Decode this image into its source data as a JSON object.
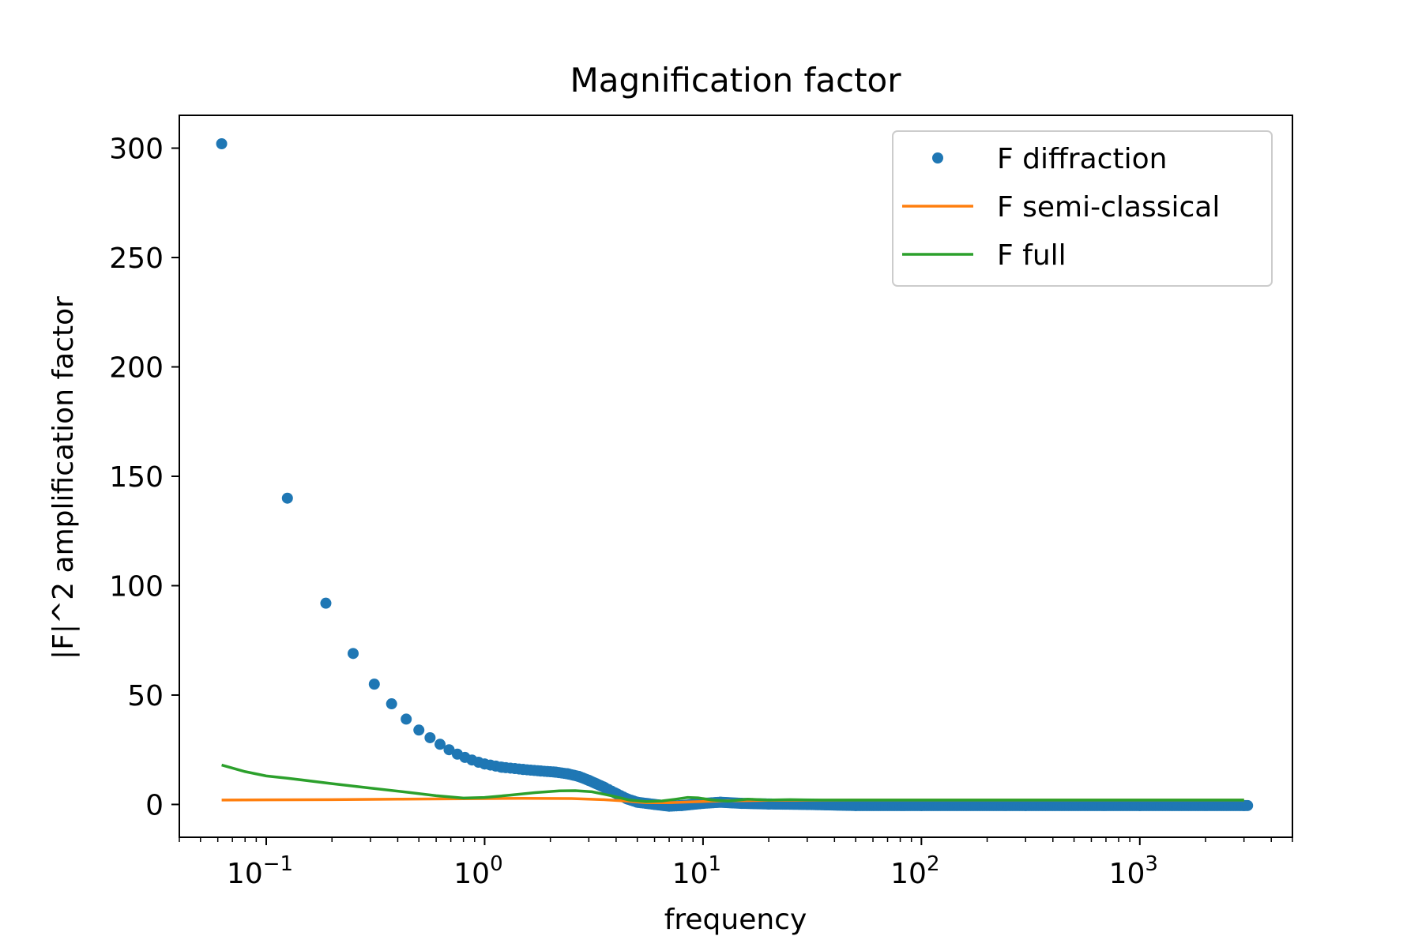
{
  "chart_data": {
    "type": "scatter",
    "title": "Magnification factor",
    "xlabel": "frequency",
    "ylabel": "|F|^2 amplification factor",
    "xscale": "log",
    "xlim": [
      0.04,
      5000
    ],
    "ylim": [
      -15,
      315
    ],
    "grid": false,
    "legend_position": "top-right",
    "y_ticks": [
      0,
      50,
      100,
      150,
      200,
      250,
      300
    ],
    "x_ticks": [
      0.1,
      1,
      10,
      100,
      1000
    ],
    "x_tick_labels": [
      {
        "base": "10",
        "exp": "−1"
      },
      {
        "base": "10",
        "exp": "0"
      },
      {
        "base": "10",
        "exp": "1"
      },
      {
        "base": "10",
        "exp": "2"
      },
      {
        "base": "10",
        "exp": "3"
      }
    ],
    "series": [
      {
        "name": "F diffraction",
        "style": "dots",
        "color": "#1f77b4",
        "points": [
          [
            0.0625,
            302
          ],
          [
            0.125,
            140
          ],
          [
            0.1875,
            92
          ],
          [
            0.25,
            69
          ],
          [
            0.3125,
            55
          ],
          [
            0.375,
            46
          ],
          [
            0.4375,
            39
          ],
          [
            0.5,
            34
          ],
          [
            0.5625,
            30.5
          ],
          [
            0.625,
            27.5
          ],
          [
            0.6875,
            25
          ],
          [
            0.75,
            23
          ],
          [
            0.8125,
            21.5
          ],
          [
            0.875,
            20.3
          ],
          [
            0.9375,
            19.3
          ],
          [
            1.0,
            18.5
          ],
          [
            1.2,
            17
          ],
          [
            1.5,
            16
          ],
          [
            1.8,
            15.3
          ],
          [
            2.1,
            14.8
          ],
          [
            2.4,
            14
          ],
          [
            2.7,
            12.8
          ],
          [
            3.0,
            11
          ],
          [
            3.5,
            8
          ],
          [
            4.0,
            5
          ],
          [
            4.5,
            2.5
          ],
          [
            5.0,
            1
          ],
          [
            6.0,
            0
          ],
          [
            7.0,
            -0.8
          ],
          [
            8.0,
            -0.5
          ],
          [
            10,
            0.5
          ],
          [
            12,
            1
          ],
          [
            15,
            0.5
          ],
          [
            20,
            0.2
          ],
          [
            30,
            0
          ],
          [
            50,
            -0.5
          ],
          [
            100,
            -0.5
          ],
          [
            300,
            -0.5
          ],
          [
            1000,
            -0.5
          ],
          [
            3000,
            -0.5
          ]
        ]
      },
      {
        "name": "F semi-classical",
        "style": "line",
        "color": "#ff7f0e",
        "points": [
          [
            0.0625,
            2
          ],
          [
            0.1,
            2.1
          ],
          [
            0.2,
            2.2
          ],
          [
            0.4,
            2.4
          ],
          [
            0.8,
            2.6
          ],
          [
            1.5,
            2.8
          ],
          [
            2.5,
            2.7
          ],
          [
            3.5,
            2.2
          ],
          [
            4.5,
            1.5
          ],
          [
            5.5,
            0.8
          ],
          [
            7,
            0.8
          ],
          [
            9,
            1.2
          ],
          [
            12,
            1.6
          ],
          [
            20,
            1.9
          ],
          [
            50,
            2
          ],
          [
            200,
            2
          ],
          [
            1000,
            2
          ],
          [
            3000,
            2
          ]
        ]
      },
      {
        "name": "F full",
        "style": "line",
        "color": "#2ca02c",
        "points": [
          [
            0.0625,
            18
          ],
          [
            0.08,
            15
          ],
          [
            0.1,
            13
          ],
          [
            0.125,
            12
          ],
          [
            0.2,
            9.5
          ],
          [
            0.3,
            7.5
          ],
          [
            0.45,
            5.5
          ],
          [
            0.6,
            4
          ],
          [
            0.8,
            2.9
          ],
          [
            1.0,
            3.2
          ],
          [
            1.3,
            4.2
          ],
          [
            1.7,
            5.4
          ],
          [
            2.2,
            6.2
          ],
          [
            2.6,
            6.3
          ],
          [
            3.1,
            5.8
          ],
          [
            3.8,
            4
          ],
          [
            4.6,
            2
          ],
          [
            5.5,
            1.3
          ],
          [
            6.5,
            1.6
          ],
          [
            7.5,
            2.4
          ],
          [
            8.5,
            3.2
          ],
          [
            9.5,
            3
          ],
          [
            11,
            2
          ],
          [
            13,
            1.5
          ],
          [
            16,
            2.4
          ],
          [
            20,
            2
          ],
          [
            25,
            2.2
          ],
          [
            35,
            2
          ],
          [
            60,
            2
          ],
          [
            200,
            2
          ],
          [
            1000,
            2
          ],
          [
            3000,
            2
          ]
        ]
      }
    ]
  }
}
